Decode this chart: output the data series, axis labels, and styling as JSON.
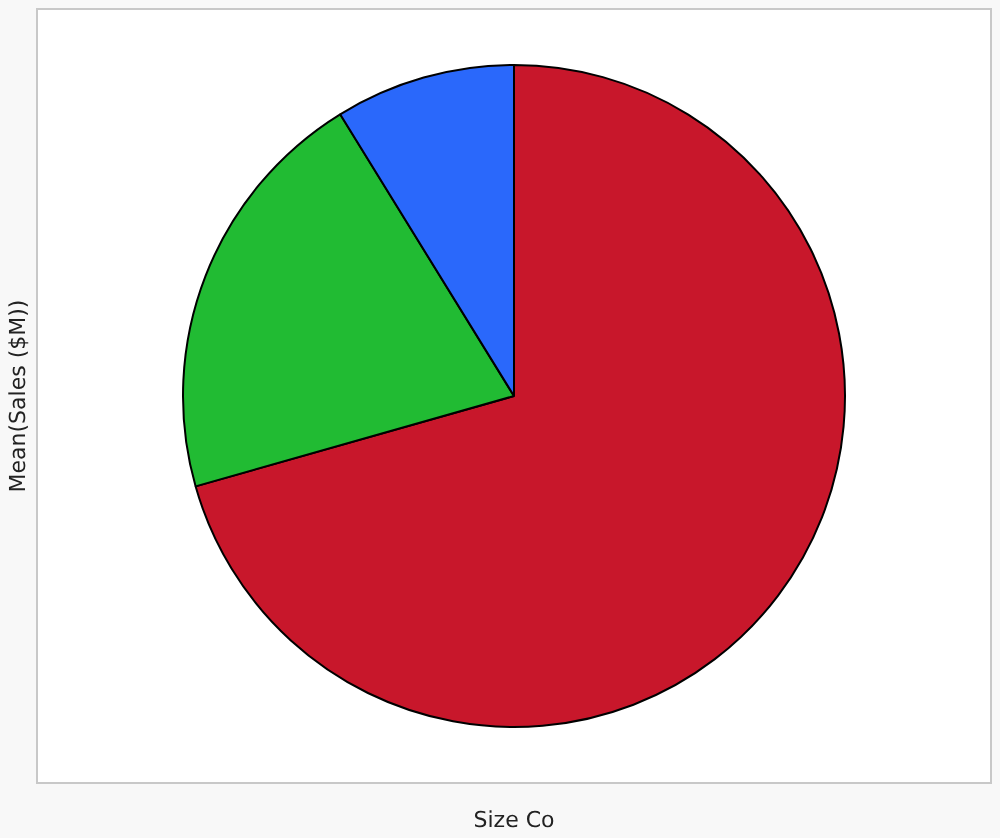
{
  "chart_data": {
    "type": "pie",
    "xlabel": "Size Co",
    "ylabel": "Mean(Sales ($M))",
    "categories": [
      null,
      null,
      null
    ],
    "values": [
      70.6,
      20.6,
      8.8
    ],
    "colors": [
      "#c8172b",
      "#21bb33",
      "#2a68fb"
    ],
    "legend": false
  }
}
